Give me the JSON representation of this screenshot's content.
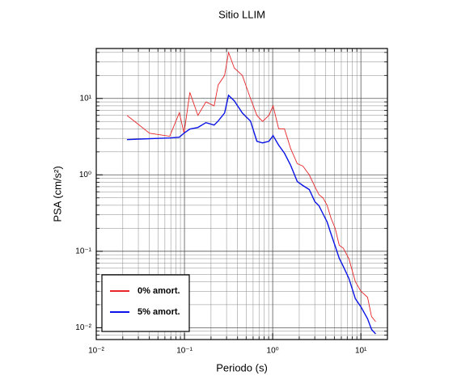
{
  "chart_data": {
    "type": "line",
    "title": "Sitio LLIM",
    "x_label": "Periodo (s)",
    "y_label": "PSA (cm/s²)",
    "x_scale": "log",
    "y_scale": "log",
    "grid": true,
    "legend": "lower left",
    "xlim": [
      0.01,
      20
    ],
    "ylim": [
      0.007,
      45
    ],
    "xticks": [
      {
        "value": 0.01,
        "label": "10⁻²"
      },
      {
        "value": 0.1,
        "label": "10⁻¹"
      },
      {
        "value": 1,
        "label": "10⁰"
      },
      {
        "value": 10,
        "label": "10¹"
      }
    ],
    "yticks": [
      {
        "value": 0.01,
        "label": "10⁻²"
      },
      {
        "value": 0.1,
        "label": "10⁻¹"
      },
      {
        "value": 1,
        "label": "10⁰"
      },
      {
        "value": 10,
        "label": "10¹"
      }
    ],
    "xminorticks": [
      0.02,
      0.03,
      0.04,
      0.05,
      0.06,
      0.07,
      0.08,
      0.09,
      0.2,
      0.3,
      0.4,
      0.5,
      0.6,
      0.7,
      0.8,
      0.9,
      2,
      3,
      4,
      5,
      6,
      7,
      8,
      9
    ],
    "yminorticks": [
      0.008,
      0.009,
      0.02,
      0.03,
      0.04,
      0.05,
      0.06,
      0.07,
      0.08,
      0.09,
      0.2,
      0.3,
      0.4,
      0.5,
      0.6,
      0.7,
      0.8,
      0.9,
      2,
      3,
      4,
      5,
      6,
      7,
      8,
      9,
      20,
      30,
      40
    ],
    "x": [
      0.0223,
      0.0402,
      0.068,
      0.0875,
      0.099,
      0.115,
      0.142,
      0.175,
      0.217,
      0.241,
      0.285,
      0.316,
      0.367,
      0.453,
      0.56,
      0.662,
      0.767,
      0.907,
      1.01,
      1.17,
      1.36,
      1.6,
      1.9,
      2.2,
      2.6,
      3.01,
      3.35,
      3.72,
      4.14,
      4.59,
      5.11,
      5.68,
      6.31,
      7.31,
      8.65,
      10.0,
      11.9,
      13.2,
      14.7
    ],
    "series": [
      {
        "name": "0% amort.",
        "color": "#e8272a",
        "values": [
          6.0,
          3.5,
          3.2,
          6.5,
          3.5,
          12,
          6,
          9,
          8,
          15,
          20,
          40,
          25,
          20,
          10,
          6,
          5,
          6,
          8,
          4,
          4,
          2.2,
          1.4,
          1.3,
          1.0,
          0.7,
          0.55,
          0.5,
          0.4,
          0.27,
          0.2,
          0.12,
          0.11,
          0.08,
          0.04,
          0.03,
          0.025,
          0.014,
          0.012
        ]
      },
      {
        "name": "5% amort.",
        "color": "#0a14e6",
        "values": [
          2.89,
          2.97,
          3.04,
          3.11,
          3.52,
          3.97,
          4.17,
          4.82,
          4.48,
          5.06,
          6.45,
          11.0,
          9.3,
          6.45,
          5.06,
          2.75,
          2.62,
          2.75,
          3.26,
          2.44,
          1.92,
          1.33,
          0.818,
          0.725,
          0.642,
          0.446,
          0.394,
          0.309,
          0.242,
          0.168,
          0.117,
          0.081,
          0.0636,
          0.0442,
          0.024,
          0.0188,
          0.0131,
          0.0095,
          0.0083
        ]
      }
    ]
  }
}
